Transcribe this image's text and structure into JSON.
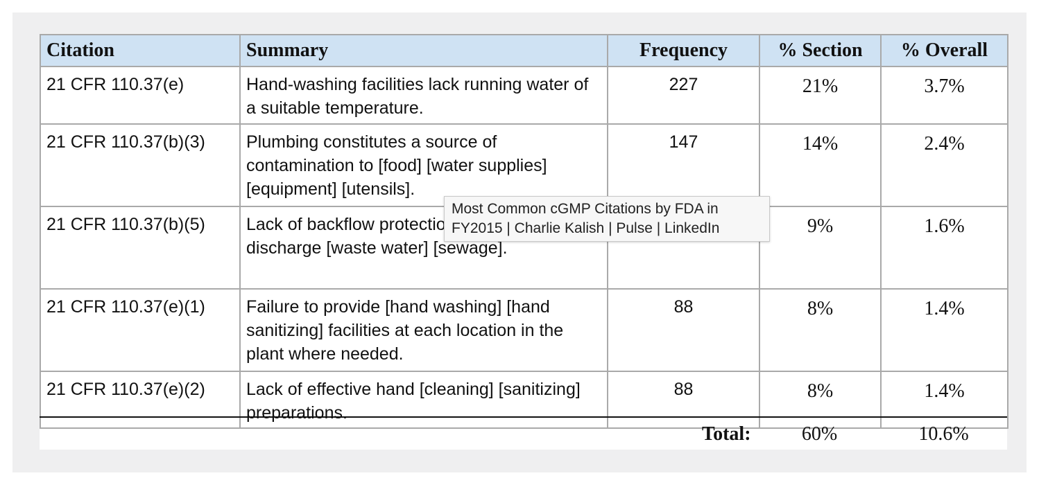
{
  "table": {
    "headers": {
      "citation": "Citation",
      "summary": "Summary",
      "frequency": "Frequency",
      "pct_section": "% Section",
      "pct_overall": "% Overall"
    },
    "rows": [
      {
        "citation": "21 CFR 110.37(e)",
        "summary": "Hand-washing facilities lack running water of a suitable temperature.",
        "frequency": "227",
        "pct_section": "21%",
        "pct_overall": "3.7%"
      },
      {
        "citation": "21 CFR 110.37(b)(3)",
        "summary": "Plumbing constitutes a source of contamination to [food] [water supplies] [equipment] [utensils].",
        "frequency": "147",
        "pct_section": "14%",
        "pct_overall": "2.4%"
      },
      {
        "citation": "21 CFR 110.37(b)(5)",
        "summary": "Lack of backflow protection in systems that discharge [waste water] [sewage].",
        "frequency": "",
        "pct_section": "9%",
        "pct_overall": "1.6%"
      },
      {
        "citation": "21 CFR 110.37(e)(1)",
        "summary": "Failure to provide [hand washing] [hand sanitizing] facilities at each location in the plant where needed.",
        "frequency": "88",
        "pct_section": "8%",
        "pct_overall": "1.4%"
      },
      {
        "citation": "21 CFR 110.37(e)(2)",
        "summary": "Lack of effective hand [cleaning] [sanitizing] preparations.",
        "frequency": "88",
        "pct_section": "8%",
        "pct_overall": "1.4%"
      }
    ],
    "total": {
      "label": "Total:",
      "pct_section": "60%",
      "pct_overall": "10.6%"
    }
  },
  "tooltip": {
    "text": "Most Common cGMP Citations by FDA in FY2015 | Charlie Kalish | Pulse | LinkedIn"
  },
  "colors": {
    "header_bg": "#cfe2f3",
    "frame_bg": "#efeff0",
    "border": "#a9a9a9"
  }
}
